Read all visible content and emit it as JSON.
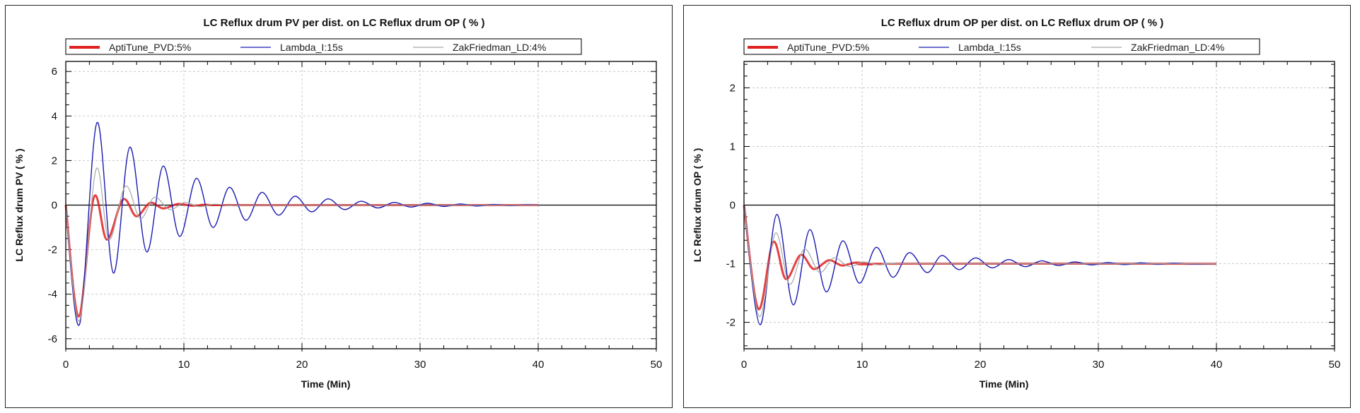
{
  "colors": {
    "AptiTune_PVD:5%": "#e02020",
    "Lambda_I:15s": "#1a1ab0",
    "ZakFriedman_LD:4%": "#a8a8a8"
  },
  "chart_data": [
    {
      "type": "line",
      "title": "LC Reflux drum PV per dist. on LC Reflux drum OP ( % )",
      "xlabel": "Time (Min)",
      "ylabel": "LC Reflux drum PV ( % )",
      "xlim": [
        0,
        50
      ],
      "ylim": [
        -6.45,
        6.45
      ],
      "x_ticks": [
        "0",
        "10",
        "20",
        "30",
        "40",
        "50"
      ],
      "y_ticks": [
        "-6",
        "-4",
        "-2",
        "0",
        "2",
        "4",
        "6"
      ],
      "grid": true,
      "legend": "top",
      "series": [
        {
          "name": "AptiTune_PVD:5%",
          "color": "#e02020",
          "x": [
            0,
            1.1,
            2.38,
            3.48,
            4.84,
            5.97,
            7.14,
            8.24,
            9.5,
            10.7,
            12,
            14,
            40
          ],
          "y": [
            0,
            -5.0,
            0.35,
            -1.55,
            0.25,
            -0.5,
            0.1,
            -0.15,
            0.05,
            -0.03,
            0.01,
            0,
            0
          ]
        },
        {
          "name": "Lambda_I:15s",
          "color": "#1a1ab0",
          "x": [
            0,
            1.17,
            2.64,
            4.03,
            5.42,
            6.85,
            8.24,
            9.63,
            11.06,
            12.45,
            13.85,
            15.24,
            16.6,
            18.0,
            19.4,
            20.8,
            22.2,
            23.6,
            25.0,
            26.4,
            27.8,
            29.2,
            30.6,
            32.0,
            33.4,
            34.8,
            36.2,
            37.6,
            39.0,
            40
          ],
          "y": [
            0,
            -5.35,
            3.7,
            -3.05,
            2.6,
            -2.1,
            1.75,
            -1.4,
            1.2,
            -1.0,
            0.8,
            -0.68,
            0.57,
            -0.45,
            0.4,
            -0.3,
            0.28,
            -0.2,
            0.17,
            -0.13,
            0.12,
            -0.09,
            0.08,
            -0.06,
            0.05,
            -0.04,
            0.03,
            -0.02,
            0.02,
            0
          ]
        },
        {
          "name": "ZakFriedman_LD:4%",
          "color": "#a8a8a8",
          "x": [
            0,
            1.15,
            2.56,
            3.66,
            5.05,
            6.3,
            7.5,
            8.8,
            10.07,
            11.3,
            12.6,
            14,
            16,
            40
          ],
          "y": [
            0,
            -5.2,
            1.6,
            -1.55,
            0.85,
            -0.6,
            0.35,
            -0.2,
            0.12,
            -0.07,
            0.04,
            -0.02,
            0,
            0
          ]
        }
      ]
    },
    {
      "type": "line",
      "title": "LC Reflux drum OP per dist. on LC Reflux drum OP ( % )",
      "xlabel": "Time (Min)",
      "ylabel": "LC Reflux drum OP ( % )",
      "xlim": [
        0,
        50
      ],
      "ylim": [
        -2.45,
        2.45
      ],
      "x_ticks": [
        "0",
        "10",
        "20",
        "30",
        "40",
        "50"
      ],
      "y_ticks": [
        "-2",
        "-1",
        "0",
        "1",
        "2"
      ],
      "grid": true,
      "legend": "top",
      "series": [
        {
          "name": "AptiTune_PVD:5%",
          "color": "#e02020",
          "x": [
            0,
            1.21,
            2.47,
            3.53,
            4.79,
            5.9,
            7.18,
            8.28,
            9.5,
            10.8,
            12,
            40
          ],
          "y": [
            0,
            -1.77,
            -0.63,
            -1.26,
            -0.85,
            -1.09,
            -0.94,
            -1.03,
            -0.98,
            -1.01,
            -1.0,
            -1.0
          ]
        },
        {
          "name": "Lambda_I:15s",
          "color": "#1a1ab0",
          "x": [
            0,
            1.36,
            2.76,
            4.16,
            5.56,
            6.96,
            8.36,
            9.76,
            11.2,
            12.6,
            14.0,
            15.5,
            16.75,
            18.2,
            19.6,
            21.0,
            22.4,
            23.8,
            25.2,
            26.6,
            28.0,
            29.4,
            30.8,
            32.2,
            33.6,
            35.0,
            36.4,
            37.8,
            40
          ],
          "y": [
            0,
            -2.04,
            -0.16,
            -1.7,
            -0.42,
            -1.48,
            -0.61,
            -1.33,
            -0.72,
            -1.23,
            -0.81,
            -1.15,
            -0.86,
            -1.1,
            -0.9,
            -1.07,
            -0.93,
            -1.05,
            -0.95,
            -1.03,
            -0.97,
            -1.02,
            -0.98,
            -1.015,
            -0.985,
            -1.01,
            -0.99,
            -1.005,
            -1.0
          ]
        },
        {
          "name": "ZakFriedman_LD:4%",
          "color": "#a8a8a8",
          "x": [
            0,
            1.3,
            2.65,
            3.85,
            5.1,
            6.4,
            7.6,
            8.9,
            10.1,
            11.4,
            12.7,
            14,
            40
          ],
          "y": [
            0,
            -1.9,
            -0.48,
            -1.35,
            -0.75,
            -1.15,
            -0.9,
            -1.05,
            -0.97,
            -1.02,
            -0.99,
            -1.0,
            -1.0
          ]
        }
      ]
    }
  ]
}
